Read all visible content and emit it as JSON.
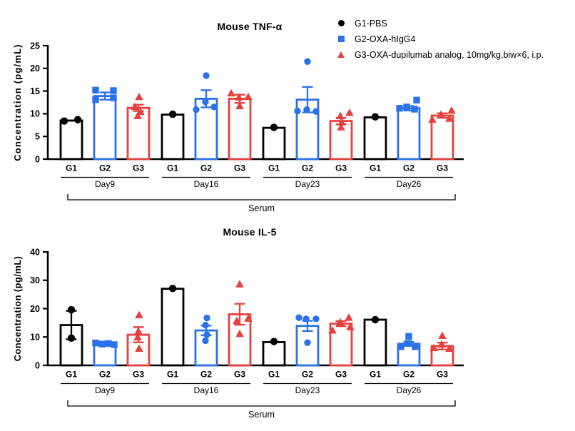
{
  "page": {
    "background": "#ffffff"
  },
  "colors": {
    "g1": "#000000",
    "g2": "#2B72E8",
    "g3": "#E5413E"
  },
  "legend": {
    "items": [
      {
        "label": "G1-PBS",
        "marker": "circle",
        "color_key": "g1"
      },
      {
        "label": "G2-OXA-hIgG4",
        "marker": "square",
        "color_key": "g2"
      },
      {
        "label": "G3-OXA-dupilumab analog, 10mg/kg,biw×6, i.p.",
        "marker": "triangle",
        "color_key": "g3"
      }
    ]
  },
  "chart_data": [
    {
      "type": "bar-scatter",
      "title": "Mouse TNF-α",
      "ylabel": "Concentration (pg/mL)",
      "xlabel": "Serum",
      "ylim": [
        0,
        25
      ],
      "yticks": [
        0,
        5,
        10,
        15,
        20,
        25
      ],
      "grid": false,
      "legend_position": "top-right",
      "group_labels": [
        "G1",
        "G2",
        "G3"
      ],
      "groups": [
        {
          "day": "Day9",
          "bars": [
            {
              "group": "G1",
              "color_key": "g1",
              "marker": "circle",
              "mean": 8.5,
              "sem": null,
              "points": [
                {
                  "v": 8.4,
                  "dx": -10
                },
                {
                  "v": 8.7,
                  "dx": 9
                }
              ]
            },
            {
              "group": "G2",
              "color_key": "g2",
              "marker": "square",
              "mean": 13.9,
              "sem": 0.8,
              "points": [
                {
                  "v": 15.2,
                  "dx": -13
                },
                {
                  "v": 13.1,
                  "dx": -13
                },
                {
                  "v": 15.1,
                  "dx": 12
                },
                {
                  "v": 13.5,
                  "dx": 12
                }
              ]
            },
            {
              "group": "G3",
              "color_key": "g3",
              "marker": "triangle",
              "mean": 11.3,
              "sem": 0.7,
              "points": [
                {
                  "v": 13.7,
                  "dx": 1
                },
                {
                  "v": 11.5,
                  "dx": -5
                },
                {
                  "v": 10.4,
                  "dx": 3
                },
                {
                  "v": 9.5,
                  "dx": -1
                }
              ]
            }
          ]
        },
        {
          "day": "Day16",
          "bars": [
            {
              "group": "G1",
              "color_key": "g1",
              "marker": "circle",
              "mean": 9.8,
              "sem": null,
              "points": [
                {
                  "v": 9.9,
                  "dx": 0
                }
              ]
            },
            {
              "group": "G2",
              "color_key": "g2",
              "marker": "circle",
              "mean": 13.3,
              "sem": 1.9,
              "points": [
                {
                  "v": 18.4,
                  "dx": 0
                },
                {
                  "v": 10.9,
                  "dx": -14
                },
                {
                  "v": 12.6,
                  "dx": -1
                },
                {
                  "v": 11.5,
                  "dx": 11
                }
              ]
            },
            {
              "group": "G3",
              "color_key": "g3",
              "marker": "triangle",
              "mean": 13.3,
              "sem": 0.9,
              "points": [
                {
                  "v": 14.5,
                  "dx": -12
                },
                {
                  "v": 13.6,
                  "dx": -1
                },
                {
                  "v": 13.7,
                  "dx": 12
                },
                {
                  "v": 11.7,
                  "dx": 0
                }
              ]
            }
          ]
        },
        {
          "day": "Day23",
          "bars": [
            {
              "group": "G1",
              "color_key": "g1",
              "marker": "circle",
              "mean": 6.9,
              "sem": null,
              "points": [
                {
                  "v": 7.0,
                  "dx": 0
                }
              ]
            },
            {
              "group": "G2",
              "color_key": "g2",
              "marker": "circle",
              "mean": 13.1,
              "sem": 2.8,
              "points": [
                {
                  "v": 21.5,
                  "dx": 0
                },
                {
                  "v": 10.6,
                  "dx": -14
                },
                {
                  "v": 10.9,
                  "dx": -1
                },
                {
                  "v": 10.5,
                  "dx": 12
                }
              ]
            },
            {
              "group": "G3",
              "color_key": "g3",
              "marker": "triangle",
              "mean": 8.4,
              "sem": 0.7,
              "points": [
                {
                  "v": 10.2,
                  "dx": 12
                },
                {
                  "v": 9.5,
                  "dx": -1
                },
                {
                  "v": 8.1,
                  "dx": 1
                },
                {
                  "v": 7.0,
                  "dx": 0
                }
              ]
            }
          ]
        },
        {
          "day": "Day26",
          "bars": [
            {
              "group": "G1",
              "color_key": "g1",
              "marker": "circle",
              "mean": 9.2,
              "sem": null,
              "points": [
                {
                  "v": 9.3,
                  "dx": 0
                }
              ]
            },
            {
              "group": "G2",
              "color_key": "g2",
              "marker": "square",
              "mean": 11.2,
              "sem": 0.5,
              "points": [
                {
                  "v": 13.0,
                  "dx": 11
                },
                {
                  "v": 11.5,
                  "dx": -3
                },
                {
                  "v": 11.2,
                  "dx": -13
                },
                {
                  "v": 11.0,
                  "dx": 8
                }
              ]
            },
            {
              "group": "G3",
              "color_key": "g3",
              "marker": "triangle",
              "mean": 9.6,
              "sem": 0.5,
              "points": [
                {
                  "v": 10.7,
                  "dx": 13
                },
                {
                  "v": 9.8,
                  "dx": -2
                },
                {
                  "v": 8.7,
                  "dx": -14
                },
                {
                  "v": 8.9,
                  "dx": 10
                }
              ]
            }
          ]
        }
      ]
    },
    {
      "type": "bar-scatter",
      "title": "Mouse IL-5",
      "ylabel": "Concentration (pg/mL)",
      "xlabel": "Serum",
      "ylim": [
        0,
        40
      ],
      "yticks": [
        0,
        10,
        20,
        30,
        40
      ],
      "grid": false,
      "legend_position": "none",
      "group_labels": [
        "G1",
        "G2",
        "G3"
      ],
      "groups": [
        {
          "day": "Day9",
          "bars": [
            {
              "group": "G1",
              "color_key": "g1",
              "marker": "circle",
              "mean": 14.2,
              "sem": 5.0,
              "points": [
                {
                  "v": 19.6,
                  "dx": 0
                },
                {
                  "v": 9.6,
                  "dx": 0
                }
              ]
            },
            {
              "group": "G2",
              "color_key": "g2",
              "marker": "square",
              "mean": 7.3,
              "sem": 0.3,
              "points": [
                {
                  "v": 7.9,
                  "dx": -13
                },
                {
                  "v": 7.5,
                  "dx": -4
                },
                {
                  "v": 7.7,
                  "dx": 5
                },
                {
                  "v": 7.3,
                  "dx": 13
                }
              ]
            },
            {
              "group": "G3",
              "color_key": "g3",
              "marker": "triangle",
              "mean": 10.8,
              "sem": 2.7,
              "points": [
                {
                  "v": 17.7,
                  "dx": 1
                },
                {
                  "v": 12.0,
                  "dx": 0
                },
                {
                  "v": 9.9,
                  "dx": -1
                },
                {
                  "v": 5.9,
                  "dx": 1
                }
              ]
            }
          ]
        },
        {
          "day": "Day16",
          "bars": [
            {
              "group": "G1",
              "color_key": "g1",
              "marker": "circle",
              "mean": 27.0,
              "sem": null,
              "points": [
                {
                  "v": 27.1,
                  "dx": 0
                }
              ]
            },
            {
              "group": "G2",
              "color_key": "g2",
              "marker": "circle",
              "mean": 12.3,
              "sem": 1.7,
              "points": [
                {
                  "v": 16.7,
                  "dx": 1
                },
                {
                  "v": 14.2,
                  "dx": -1
                },
                {
                  "v": 10.8,
                  "dx": 1
                },
                {
                  "v": 8.7,
                  "dx": -1
                }
              ]
            },
            {
              "group": "G3",
              "color_key": "g3",
              "marker": "triangle",
              "mean": 18.0,
              "sem": 3.7,
              "points": [
                {
                  "v": 28.6,
                  "dx": 0
                },
                {
                  "v": 15.7,
                  "dx": -4
                },
                {
                  "v": 16.5,
                  "dx": 12
                },
                {
                  "v": 11.1,
                  "dx": 0
                }
              ]
            }
          ]
        },
        {
          "day": "Day23",
          "bars": [
            {
              "group": "G1",
              "color_key": "g1",
              "marker": "circle",
              "mean": 8.2,
              "sem": null,
              "points": [
                {
                  "v": 8.4,
                  "dx": 0
                }
              ]
            },
            {
              "group": "G2",
              "color_key": "g2",
              "marker": "circle",
              "mean": 13.9,
              "sem": 1.8,
              "points": [
                {
                  "v": 16.8,
                  "dx": -12
                },
                {
                  "v": 16.4,
                  "dx": -2
                },
                {
                  "v": 16.4,
                  "dx": 12
                },
                {
                  "v": 8.0,
                  "dx": 0
                }
              ]
            },
            {
              "group": "G3",
              "color_key": "g3",
              "marker": "triangle",
              "mean": 14.7,
              "sem": 0.9,
              "points": [
                {
                  "v": 16.8,
                  "dx": 11
                },
                {
                  "v": 15.2,
                  "dx": -1
                },
                {
                  "v": 13.5,
                  "dx": 13
                },
                {
                  "v": 12.3,
                  "dx": -12
                }
              ]
            }
          ]
        },
        {
          "day": "Day26",
          "bars": [
            {
              "group": "G1",
              "color_key": "g1",
              "marker": "circle",
              "mean": 16.1,
              "sem": null,
              "points": [
                {
                  "v": 16.1,
                  "dx": 0
                }
              ]
            },
            {
              "group": "G2",
              "color_key": "g2",
              "marker": "square",
              "mean": 7.6,
              "sem": 0.7,
              "points": [
                {
                  "v": 10.2,
                  "dx": 0
                },
                {
                  "v": 7.7,
                  "dx": -1
                },
                {
                  "v": 6.6,
                  "dx": -11
                },
                {
                  "v": 6.6,
                  "dx": 9
                }
              ]
            },
            {
              "group": "G3",
              "color_key": "g3",
              "marker": "triangle",
              "mean": 6.8,
              "sem": 1.2,
              "points": [
                {
                  "v": 10.4,
                  "dx": 0
                },
                {
                  "v": 7.4,
                  "dx": -1
                },
                {
                  "v": 6.1,
                  "dx": -12
                },
                {
                  "v": 5.9,
                  "dx": 10
                }
              ]
            }
          ]
        }
      ]
    }
  ]
}
